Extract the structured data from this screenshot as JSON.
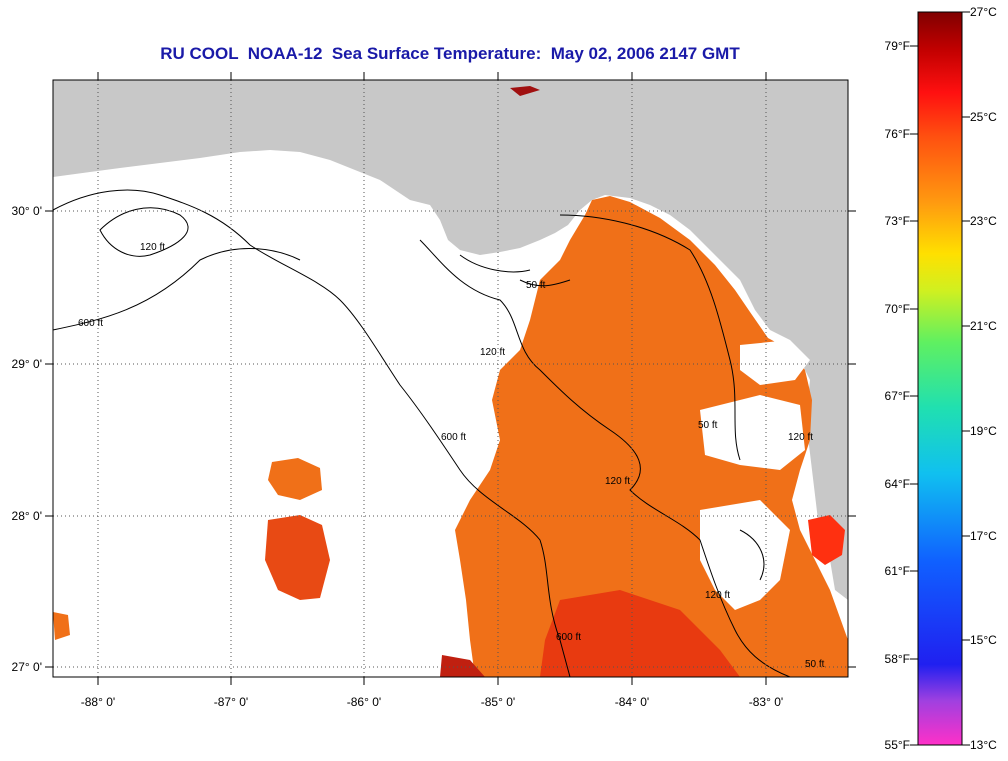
{
  "title": "RU COOL  NOAA-12  Sea Surface Temperature:  May 02, 2006 2147 GMT",
  "map": {
    "lon_labels": [
      "-88° 0'",
      "-87° 0'",
      "-86° 0'",
      "-85° 0'",
      "-84° 0'",
      "-83° 0'"
    ],
    "lat_labels": [
      "30° 0'",
      "29° 0'",
      "28° 0'",
      "27° 0'"
    ],
    "contour_labels": [
      "50 ft",
      "120 ft",
      "600 ft",
      "120 ft",
      "600 ft",
      "50 ft",
      "120 ft",
      "600 ft",
      "120 ft",
      "50 ft",
      "120 ft"
    ],
    "colors": {
      "land": "#c8c8c8",
      "water_no_data": "#ffffff",
      "sst_warm": "#f07018",
      "sst_hot": "#e83a10",
      "contour": "#000000"
    }
  },
  "colorbar": {
    "fahrenheit_labels": [
      "79°F",
      "76°F",
      "73°F",
      "70°F",
      "67°F",
      "64°F",
      "61°F",
      "58°F",
      "55°F"
    ],
    "celsius_labels": [
      "27°C",
      "25°C",
      "23°C",
      "21°C",
      "19°C",
      "17°C",
      "15°C",
      "13°C"
    ],
    "range_c": [
      13,
      27
    ],
    "range_f": [
      55,
      80.6
    ]
  }
}
